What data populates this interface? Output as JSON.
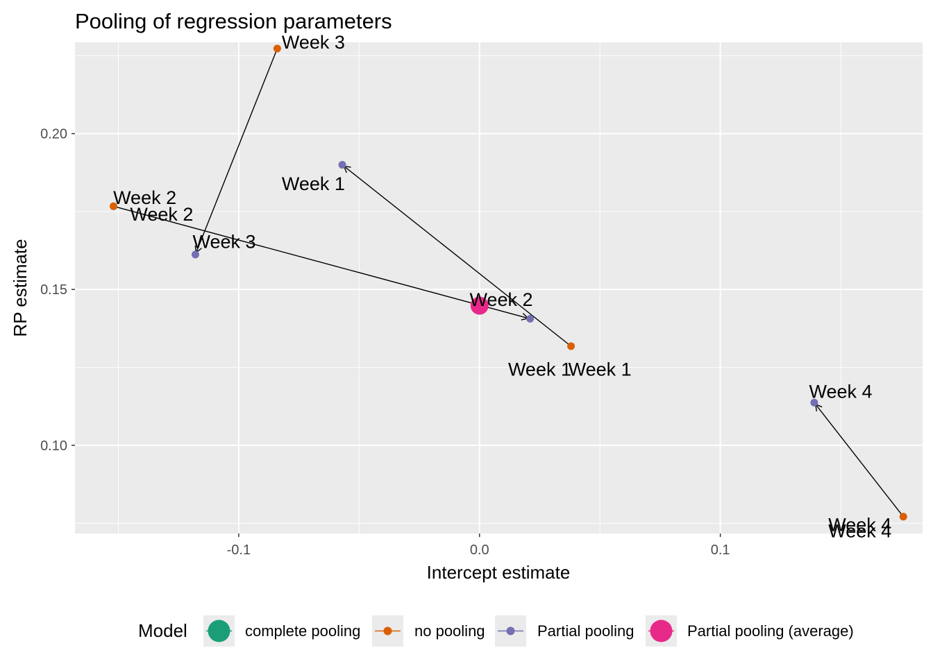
{
  "chart_data": {
    "type": "scatter",
    "title": "Pooling of regression parameters",
    "xlabel": "Intercept estimate",
    "ylabel": "RP estimate",
    "xlim": [
      -0.168,
      0.184
    ],
    "ylim": [
      0.0717,
      0.2293
    ],
    "x_ticks": [
      -0.1,
      0.0,
      0.1
    ],
    "x_tick_labels": [
      "-0.1",
      "0.0",
      "0.1"
    ],
    "y_ticks": [
      0.1,
      0.15,
      0.2
    ],
    "y_tick_labels": [
      "0.10",
      "0.15",
      "0.20"
    ],
    "grid": true,
    "legend_position": "bottom",
    "legend_title": "Model",
    "colors": {
      "panel": "#EBEBEB",
      "grid": "#FFFFFF",
      "complete pooling": "#1B9E77",
      "no pooling": "#D95F02",
      "Partial pooling": "#7570B3",
      "Partial pooling (average)": "#E7298A"
    },
    "legend": [
      {
        "label": "complete pooling",
        "color": "#1B9E77",
        "kind": "big"
      },
      {
        "label": "no pooling",
        "color": "#D95F02",
        "kind": "small"
      },
      {
        "label": "Partial pooling",
        "color": "#7570B3",
        "kind": "small"
      },
      {
        "label": "Partial pooling (average)",
        "color": "#E7298A",
        "kind": "big"
      }
    ],
    "series": [
      {
        "name": "no pooling",
        "points": [
          {
            "label": "Week 1",
            "x": 0.038,
            "y": 0.1318
          },
          {
            "label": "Week 2",
            "x": -0.152,
            "y": 0.1767
          },
          {
            "label": "Week 3",
            "x": -0.084,
            "y": 0.2273
          },
          {
            "label": "Week 4",
            "x": 0.176,
            "y": 0.0771
          }
        ]
      },
      {
        "name": "Partial pooling",
        "points": [
          {
            "label": "Week 1",
            "x": -0.057,
            "y": 0.19
          },
          {
            "label": "Week 2",
            "x": 0.021,
            "y": 0.1406
          },
          {
            "label": "Week 3",
            "x": -0.118,
            "y": 0.1612
          },
          {
            "label": "Week 4",
            "x": 0.139,
            "y": 0.1137
          }
        ]
      },
      {
        "name": "Partial pooling (average)",
        "points": [
          {
            "label": "",
            "x": 0.0,
            "y": 0.1448
          }
        ]
      }
    ],
    "point_labels": [
      {
        "text": "Week 3",
        "x": -0.069,
        "y": 0.2293,
        "series": "no pooling"
      },
      {
        "text": "Week 2",
        "x": -0.139,
        "y": 0.1794,
        "series": "no pooling"
      },
      {
        "text": "Week 2",
        "x": -0.132,
        "y": 0.1741,
        "series": "no pooling"
      },
      {
        "text": "Week 1",
        "x": 0.05,
        "y": 0.1244,
        "series": "no pooling"
      },
      {
        "text": "Week 4",
        "x": 0.158,
        "y": 0.0745,
        "series": "no pooling"
      },
      {
        "text": "Week 4",
        "x": 0.158,
        "y": 0.0725,
        "series": "no pooling"
      },
      {
        "text": "Week 1",
        "x": -0.069,
        "y": 0.1839,
        "series": "Partial pooling"
      },
      {
        "text": "Week 3",
        "x": -0.106,
        "y": 0.1653,
        "series": "Partial pooling"
      },
      {
        "text": "Week 2",
        "x": 0.009,
        "y": 0.1467,
        "series": "Partial pooling"
      },
      {
        "text": "Week 1",
        "x": 0.025,
        "y": 0.1244,
        "series": "Partial pooling"
      },
      {
        "text": "Week 4",
        "x": 0.15,
        "y": 0.1172,
        "series": "Partial pooling"
      }
    ],
    "arrows": [
      {
        "from": [
          0.038,
          0.1318
        ],
        "to": [
          -0.057,
          0.19
        ]
      },
      {
        "from": [
          -0.152,
          0.1767
        ],
        "to": [
          0.021,
          0.1406
        ]
      },
      {
        "from": [
          -0.084,
          0.2273
        ],
        "to": [
          -0.118,
          0.1612
        ]
      },
      {
        "from": [
          0.176,
          0.0771
        ],
        "to": [
          0.139,
          0.1137
        ]
      }
    ]
  }
}
